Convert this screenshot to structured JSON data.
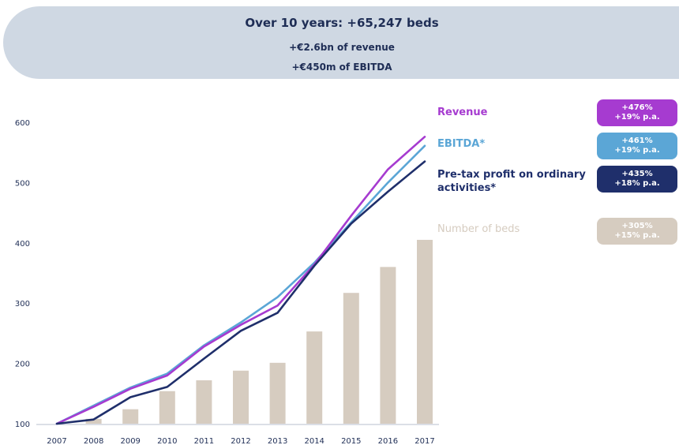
{
  "banner": {
    "line1": "Over 10 years: +65,247 beds",
    "line2": "+€2.6bn of revenue",
    "line3": "+€450m of EBITDA"
  },
  "colors": {
    "revenue": "#a63bd0",
    "ebitda": "#5ba6d6",
    "pretax": "#1f2f6b",
    "beds": "#d6ccc0",
    "banner": "#cfd8e3"
  },
  "legend": [
    {
      "label": "Revenue",
      "growth": "+476%",
      "cagr": "+19% p.a."
    },
    {
      "label": "EBITDA*",
      "growth": "+461%",
      "cagr": "+19% p.a."
    },
    {
      "label": "Pre-tax profit on ordinary activities*",
      "growth": "+435%",
      "cagr": "+18% p.a."
    },
    {
      "label": "Number of beds",
      "growth": "+305%",
      "cagr": "+15% p.a."
    }
  ],
  "chart_data": {
    "type": "bar",
    "categories": [
      "2007",
      "2008",
      "2009",
      "2010",
      "2011",
      "2012",
      "2013",
      "2014",
      "2015",
      "2016",
      "2017"
    ],
    "ylim": [
      100,
      600
    ],
    "yticks": [
      100,
      200,
      300,
      400,
      500,
      600
    ],
    "series": [
      {
        "name": "Number of beds",
        "type": "bar",
        "values": [
          100,
          108,
          124,
          154,
          172,
          188,
          201,
          253,
          317,
          360,
          405
        ]
      },
      {
        "name": "Revenue",
        "type": "line",
        "values": [
          100,
          128,
          158,
          180,
          228,
          264,
          296,
          364,
          445,
          522,
          576
        ]
      },
      {
        "name": "EBITDA*",
        "type": "line",
        "values": [
          100,
          130,
          160,
          183,
          230,
          268,
          310,
          367,
          434,
          500,
          561
        ]
      },
      {
        "name": "Pre-tax profit on ordinary activities*",
        "type": "line",
        "values": [
          100,
          107,
          144,
          161,
          208,
          254,
          284,
          362,
          432,
          485,
          535
        ]
      }
    ]
  }
}
